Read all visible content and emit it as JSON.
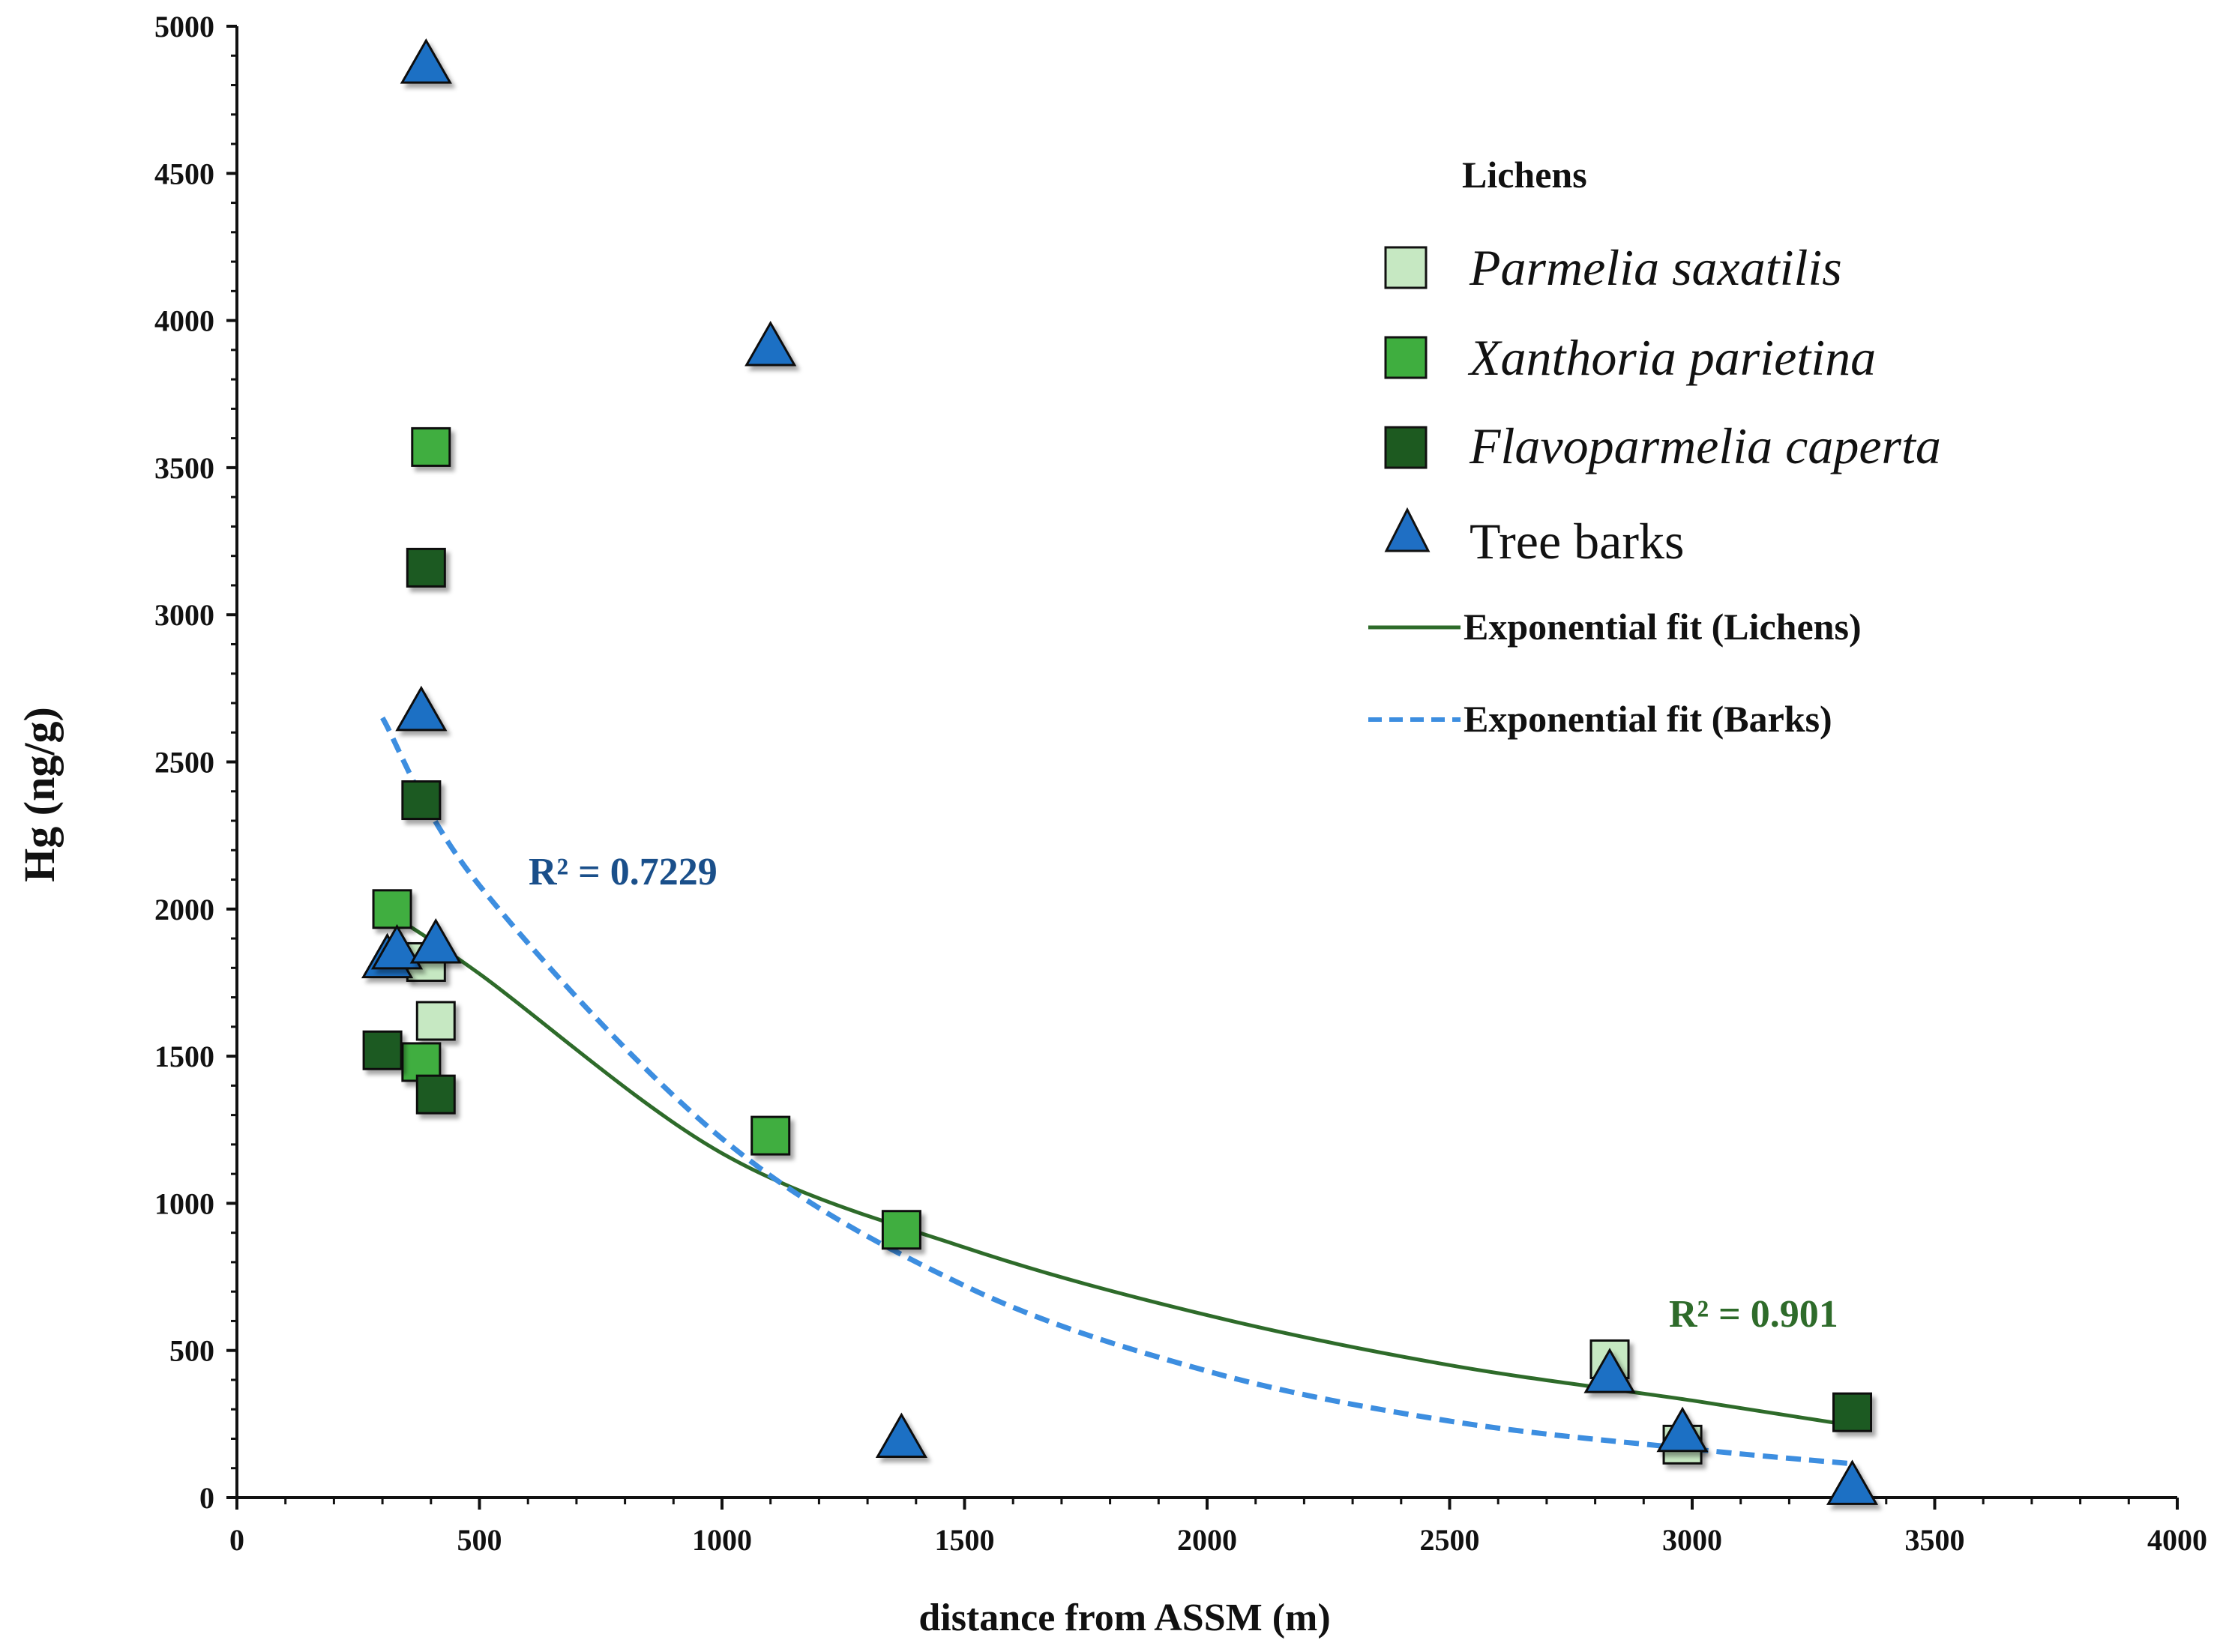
{
  "chart_data": {
    "type": "scatter",
    "title": "",
    "xlabel": "distance from ASSM (m)",
    "ylabel": "Hg (ng/g)",
    "xlim": [
      0,
      4000
    ],
    "ylim": [
      0,
      5000
    ],
    "x_ticks": [
      "0",
      "500",
      "1000",
      "1500",
      "2000",
      "2500",
      "3000",
      "3500",
      "4000"
    ],
    "y_ticks": [
      "0",
      "500",
      "1000",
      "1500",
      "2000",
      "2500",
      "3000",
      "3500",
      "4000",
      "4500",
      "5000"
    ],
    "legend_title": "Lichens",
    "series": [
      {
        "name": "Parmelia saxatilis",
        "marker": "square",
        "color": "#c6e8c2",
        "points": [
          [
            390,
            1820
          ],
          [
            410,
            1620
          ],
          [
            2830,
            470
          ],
          [
            2980,
            180
          ]
        ]
      },
      {
        "name": "Xanthoria parietina",
        "marker": "square",
        "color": "#3fae3f",
        "points": [
          [
            400,
            3570
          ],
          [
            320,
            2000
          ],
          [
            380,
            1480
          ],
          [
            1100,
            1230
          ],
          [
            1370,
            910
          ]
        ]
      },
      {
        "name": "Flavoparmelia caperta",
        "marker": "square",
        "color": "#1d5a20",
        "points": [
          [
            390,
            3160
          ],
          [
            380,
            2370
          ],
          [
            300,
            1520
          ],
          [
            410,
            1370
          ],
          [
            3330,
            290
          ]
        ]
      },
      {
        "name": "Tree barks",
        "marker": "triangle",
        "color": "#1f6fc4",
        "points": [
          [
            390,
            4880
          ],
          [
            1100,
            3920
          ],
          [
            380,
            2680
          ],
          [
            310,
            1840
          ],
          [
            330,
            1870
          ],
          [
            410,
            1890
          ],
          [
            1370,
            210
          ],
          [
            2830,
            430
          ],
          [
            2980,
            230
          ],
          [
            3330,
            50
          ]
        ]
      }
    ],
    "fits": [
      {
        "name": "Exponential fit (Lichens)",
        "style": "solid",
        "color": "#2e6b2a",
        "x_range": [
          300,
          3330
        ],
        "points": [
          [
            300,
            2000
          ],
          [
            500,
            1780
          ],
          [
            1000,
            1170
          ],
          [
            1500,
            850
          ],
          [
            2000,
            620
          ],
          [
            2500,
            450
          ],
          [
            3000,
            330
          ],
          [
            3330,
            245
          ]
        ],
        "r2_label": "R² = 0.901"
      },
      {
        "name": "Exponential fit (Barks)",
        "style": "dashed",
        "color": "#3d8ee0",
        "x_range": [
          300,
          3330
        ],
        "points": [
          [
            300,
            2650
          ],
          [
            500,
            2080
          ],
          [
            1000,
            1220
          ],
          [
            1500,
            720
          ],
          [
            2000,
            430
          ],
          [
            2500,
            260
          ],
          [
            3000,
            165
          ],
          [
            3330,
            115
          ]
        ],
        "r2_label": "R² = 0.7229"
      }
    ]
  }
}
